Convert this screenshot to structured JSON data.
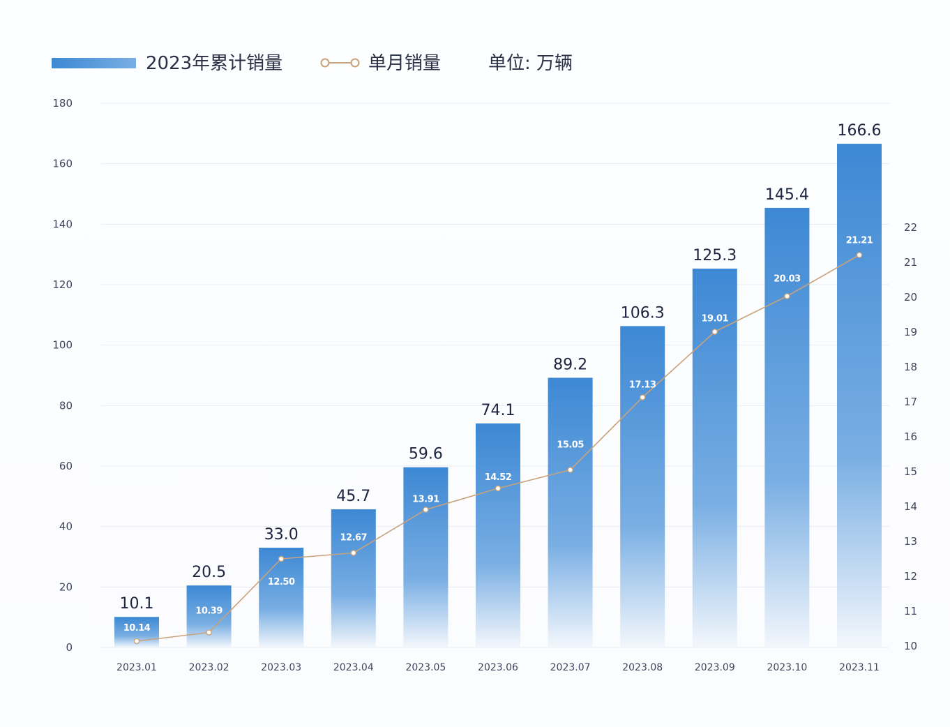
{
  "chart_data": {
    "type": "bar",
    "categories": [
      "2023.01",
      "2023.02",
      "2023.03",
      "2023.04",
      "2023.05",
      "2023.06",
      "2023.07",
      "2023.08",
      "2023.09",
      "2023.10",
      "2023.11"
    ],
    "series": [
      {
        "name": "2023年累计销量",
        "type": "bar",
        "axis": "left",
        "values": [
          10.1,
          20.5,
          33.0,
          45.7,
          59.6,
          74.1,
          89.2,
          106.3,
          125.3,
          145.4,
          166.6
        ]
      },
      {
        "name": "单月销量",
        "type": "line",
        "axis": "right",
        "values": [
          10.14,
          10.39,
          12.5,
          12.67,
          13.91,
          14.52,
          15.05,
          17.13,
          19.01,
          20.03,
          21.21
        ]
      }
    ],
    "unit": "单位: 万辆",
    "y_left": {
      "ylim": [
        0,
        180
      ],
      "ticks": [
        0,
        20,
        40,
        60,
        80,
        100,
        120,
        140,
        160,
        180
      ]
    },
    "y_right": {
      "ylim": [
        10,
        22
      ],
      "ticks": [
        10,
        11,
        12,
        13,
        14,
        15,
        16,
        17,
        18,
        19,
        20,
        21,
        22
      ]
    },
    "grid": true,
    "legend_position": "top-left"
  },
  "colors": {
    "bar_top": "#3d88d4",
    "bar_mid": "#79aee3",
    "bar_bottom": "#f3f7fc",
    "line": "#c9a27c",
    "point_fill": "#ffffff",
    "value_label": "#1d2440",
    "monthly_label": "#ffffff",
    "axis_label": "#3f455c",
    "grid": "#e7ebf2"
  }
}
